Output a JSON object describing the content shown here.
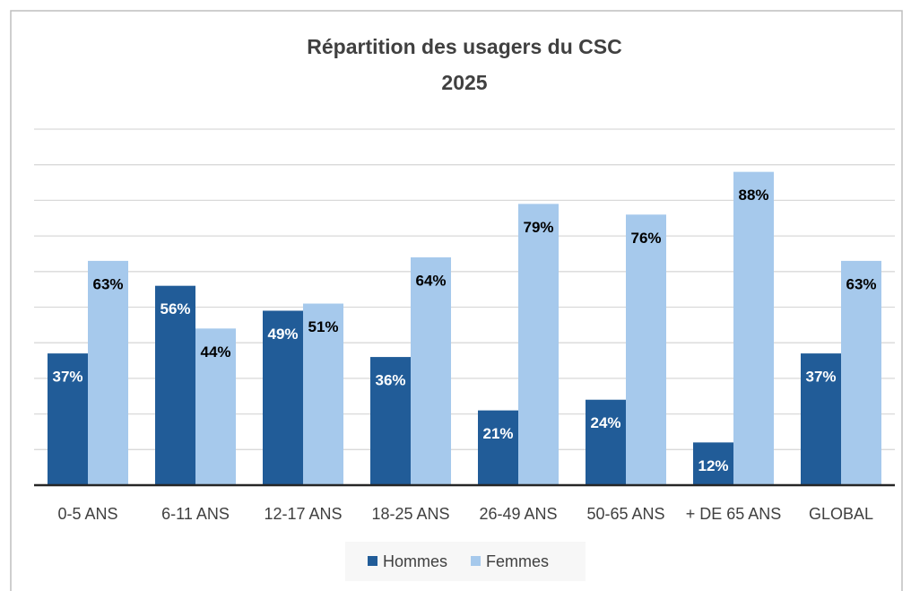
{
  "chart_data": {
    "type": "bar",
    "title": "Répartition des usagers du CSC",
    "subtitle": "2025",
    "categories": [
      "0-5 ANS",
      "6-11 ANS",
      "12-17 ANS",
      "18-25 ANS",
      "26-49 ANS",
      "50-65 ANS",
      "+ DE 65 ANS",
      "GLOBAL"
    ],
    "series": [
      {
        "name": "Hommes",
        "color": "#215c98",
        "values": [
          37,
          56,
          49,
          36,
          21,
          24,
          12,
          37
        ],
        "value_labels": [
          "37%",
          "56%",
          "49%",
          "36%",
          "21%",
          "24%",
          "12%",
          "37%"
        ]
      },
      {
        "name": "Femmes",
        "color": "#a6c9ec",
        "values": [
          63,
          44,
          51,
          64,
          79,
          76,
          88,
          63
        ],
        "value_labels": [
          "63%",
          "44%",
          "51%",
          "64%",
          "79%",
          "76%",
          "88%",
          "63%"
        ]
      }
    ],
    "ylim": [
      0,
      100
    ],
    "yticks": [
      0,
      10,
      20,
      30,
      40,
      50,
      60,
      70,
      80,
      90,
      100
    ],
    "grid": true,
    "legend": "bottom"
  }
}
